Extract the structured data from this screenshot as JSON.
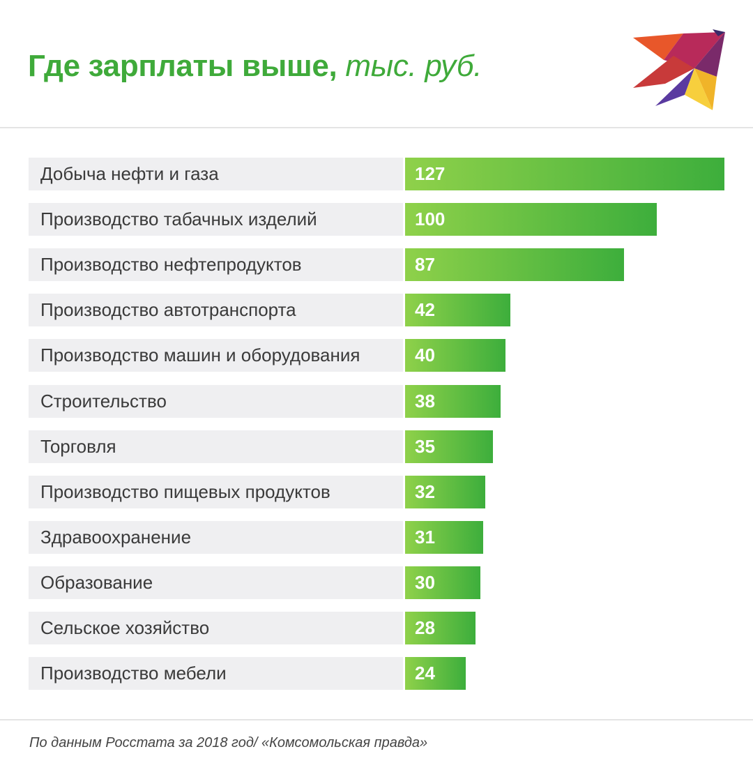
{
  "header": {
    "title": "Где зарплаты выше,",
    "unit": "тыс. руб."
  },
  "logo": {
    "icon": "bird-logo-icon"
  },
  "chart_data": {
    "type": "bar",
    "orientation": "horizontal",
    "title": "Где зарплаты выше, тыс. руб.",
    "categories": [
      "Добыча нефти и газа",
      "Производство табачных изделий",
      "Производство нефтепродуктов",
      "Производство автотранспорта",
      "Производство машин и оборудования",
      "Строительство",
      "Торговля",
      "Производство пищевых продуктов",
      "Здравоохранение",
      "Образование",
      "Сельское хозяйство",
      "Производство мебели"
    ],
    "values": [
      127,
      100,
      87,
      42,
      40,
      38,
      35,
      32,
      31,
      30,
      28,
      24
    ],
    "xlim": [
      0,
      127
    ],
    "grid": false,
    "colors": {
      "bar_start": "#8fd14a",
      "bar_end": "#3dae3c",
      "title": "#3faa3a"
    }
  },
  "footer": {
    "source": "По данным Росстата за 2018 год/ «Комсомольская правда»"
  }
}
